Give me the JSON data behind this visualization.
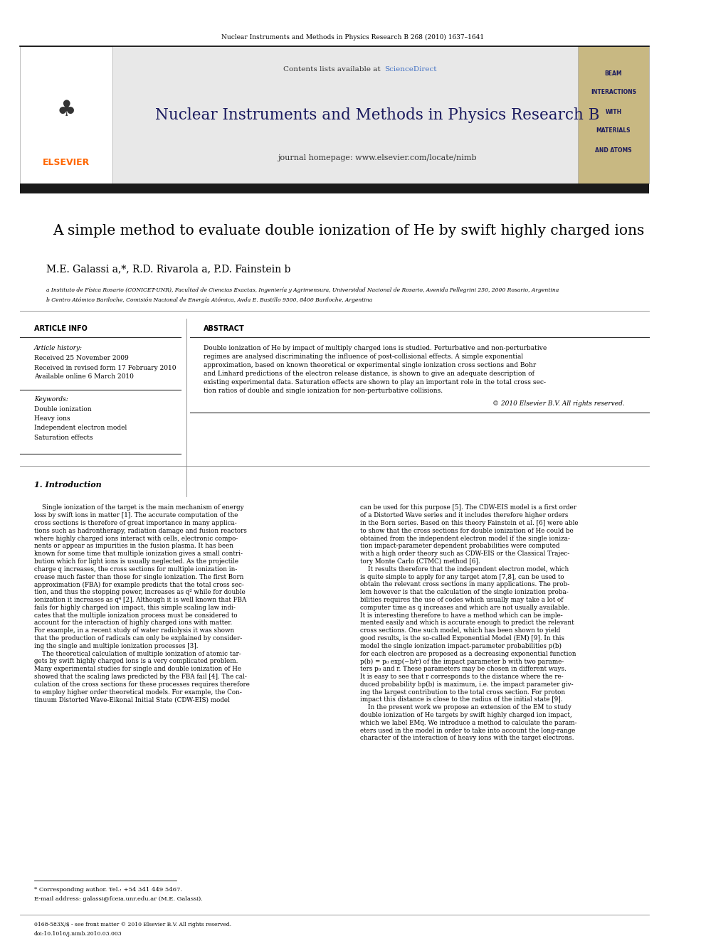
{
  "page_width": 9.92,
  "page_height": 13.23,
  "bg_color": "#ffffff",
  "journal_header_text": "Nuclear Instruments and Methods in Physics Research B 268 (2010) 1637–1641",
  "contents_text": "Contents lists available at ",
  "sciencedirect_text": "ScienceDirect",
  "journal_name": "Nuclear Instruments and Methods in Physics Research B",
  "journal_homepage": "journal homepage: www.elsevier.com/locate/nimb",
  "elsevier_color": "#ff6600",
  "title": "A simple method to evaluate double ionization of He by swift highly charged ions",
  "authors": "M.E. Galassi a,*, R.D. Rivarola a, P.D. Fainstein b",
  "affiliation_a": "a Instituto de Física Rosario (CONICET-UNR), Facultad de Ciencias Exactas, Ingeniería y Agrimensura, Universidad Nacional de Rosario, Avenida Pellegrini 250, 2000 Rosario, Argentina",
  "affiliation_b": "b Centro Atómico Bariloche, Comisión Nacional de Energía Atómica, Avda E. Bustillo 9500, 8400 Bariloche, Argentina",
  "article_info_title": "ARTICLE INFO",
  "abstract_title": "ABSTRACT",
  "article_history_label": "Article history:",
  "received": "Received 25 November 2009",
  "revised": "Received in revised form 17 February 2010",
  "available": "Available online 6 March 2010",
  "keywords_label": "Keywords:",
  "keywords": [
    "Double ionization",
    "Heavy ions",
    "Independent electron model",
    "Saturation effects"
  ],
  "copyright": "© 2010 Elsevier B.V. All rights reserved.",
  "intro_title": "1. Introduction",
  "footnote_star": "* Corresponding author. Tel.: +54 341 449 5467.",
  "footnote_email": "E-mail address: galassi@fceia.unr.edu.ar (M.E. Galassi).",
  "footer_left": "0168-583X/$ - see front matter © 2010 Elsevier B.V. All rights reserved.",
  "footer_doi": "doi:10.1016/j.nimb.2010.03.003",
  "header_bg": "#e8e8e8",
  "side_panel_bg": "#c8b882",
  "side_panel_text": [
    "BEAM",
    "INTERACTIONS",
    "WITH",
    "MATERIALS",
    "AND ATOMS"
  ],
  "dark_bar_color": "#1a1a1a",
  "abstract_lines": [
    "Double ionization of He by impact of multiply charged ions is studied. Perturbative and non-perturbative",
    "regimes are analysed discriminating the influence of post-collisional effects. A simple exponential",
    "approximation, based on known theoretical or experimental single ionization cross sections and Bohr",
    "and Linhard predictions of the electron release distance, is shown to give an adequate description of",
    "existing experimental data. Saturation effects are shown to play an important role in the total cross sec-",
    "tion ratios of double and single ionization for non-perturbative collisions."
  ],
  "col1_lines": [
    "    Single ionization of the target is the main mechanism of energy",
    "loss by swift ions in matter [1]. The accurate computation of the",
    "cross sections is therefore of great importance in many applica-",
    "tions such as hadrontherapy, radiation damage and fusion reactors",
    "where highly charged ions interact with cells, electronic compo-",
    "nents or appear as impurities in the fusion plasma. It has been",
    "known for some time that multiple ionization gives a small contri-",
    "bution which for light ions is usually neglected. As the projectile",
    "charge q increases, the cross sections for multiple ionization in-",
    "crease much faster than those for single ionization. The first Born",
    "approximation (FBA) for example predicts that the total cross sec-",
    "tion, and thus the stopping power, increases as q² while for double",
    "ionization it increases as q⁴ [2]. Although it is well known that FBA",
    "fails for highly charged ion impact, this simple scaling law indi-",
    "cates that the multiple ionization process must be considered to",
    "account for the interaction of highly charged ions with matter.",
    "For example, in a recent study of water radiolysis it was shown",
    "that the production of radicals can only be explained by consider-",
    "ing the single and multiple ionization processes [3].",
    "    The theoretical calculation of multiple ionization of atomic tar-",
    "gets by swift highly charged ions is a very complicated problem.",
    "Many experimental studies for single and double ionization of He",
    "showed that the scaling laws predicted by the FBA fail [4]. The cal-",
    "culation of the cross sections for these processes requires therefore",
    "to employ higher order theoretical models. For example, the Con-",
    "tinuum Distorted Wave-Eikonal Initial State (CDW-EIS) model"
  ],
  "col2_lines": [
    "can be used for this purpose [5]. The CDW-EIS model is a first order",
    "of a Distorted Wave series and it includes therefore higher orders",
    "in the Born series. Based on this theory Fainstein et al. [6] were able",
    "to show that the cross sections for double ionization of He could be",
    "obtained from the independent electron model if the single ioniza-",
    "tion impact-parameter dependent probabilities were computed",
    "with a high order theory such as CDW-EIS or the Classical Trajec-",
    "tory Monte Carlo (CTMC) method [6].",
    "    It results therefore that the independent electron model, which",
    "is quite simple to apply for any target atom [7,8], can be used to",
    "obtain the relevant cross sections in many applications. The prob-",
    "lem however is that the calculation of the single ionization proba-",
    "bilities requires the use of codes which usually may take a lot of",
    "computer time as q increases and which are not usually available.",
    "It is interesting therefore to have a method which can be imple-",
    "mented easily and which is accurate enough to predict the relevant",
    "cross sections. One such model, which has been shown to yield",
    "good results, is the so-called Exponential Model (EM) [9]. In this",
    "model the single ionization impact-parameter probabilities p(b)",
    "for each electron are proposed as a decreasing exponential function",
    "p(b) = p₀ exp(−b/r) of the impact parameter b with two parame-",
    "ters p₀ and r. These parameters may be chosen in different ways.",
    "It is easy to see that r corresponds to the distance where the re-",
    "duced probability bp(b) is maximum, i.e. the impact parameter giv-",
    "ing the largest contribution to the total cross section. For proton",
    "impact this distance is close to the radius of the initial state [9].",
    "    In the present work we propose an extension of the EM to study",
    "double ionization of He targets by swift highly charged ion impact,",
    "which we label EMq. We introduce a method to calculate the param-",
    "eters used in the model in order to take into account the long-range",
    "character of the interaction of heavy ions with the target electrons."
  ]
}
